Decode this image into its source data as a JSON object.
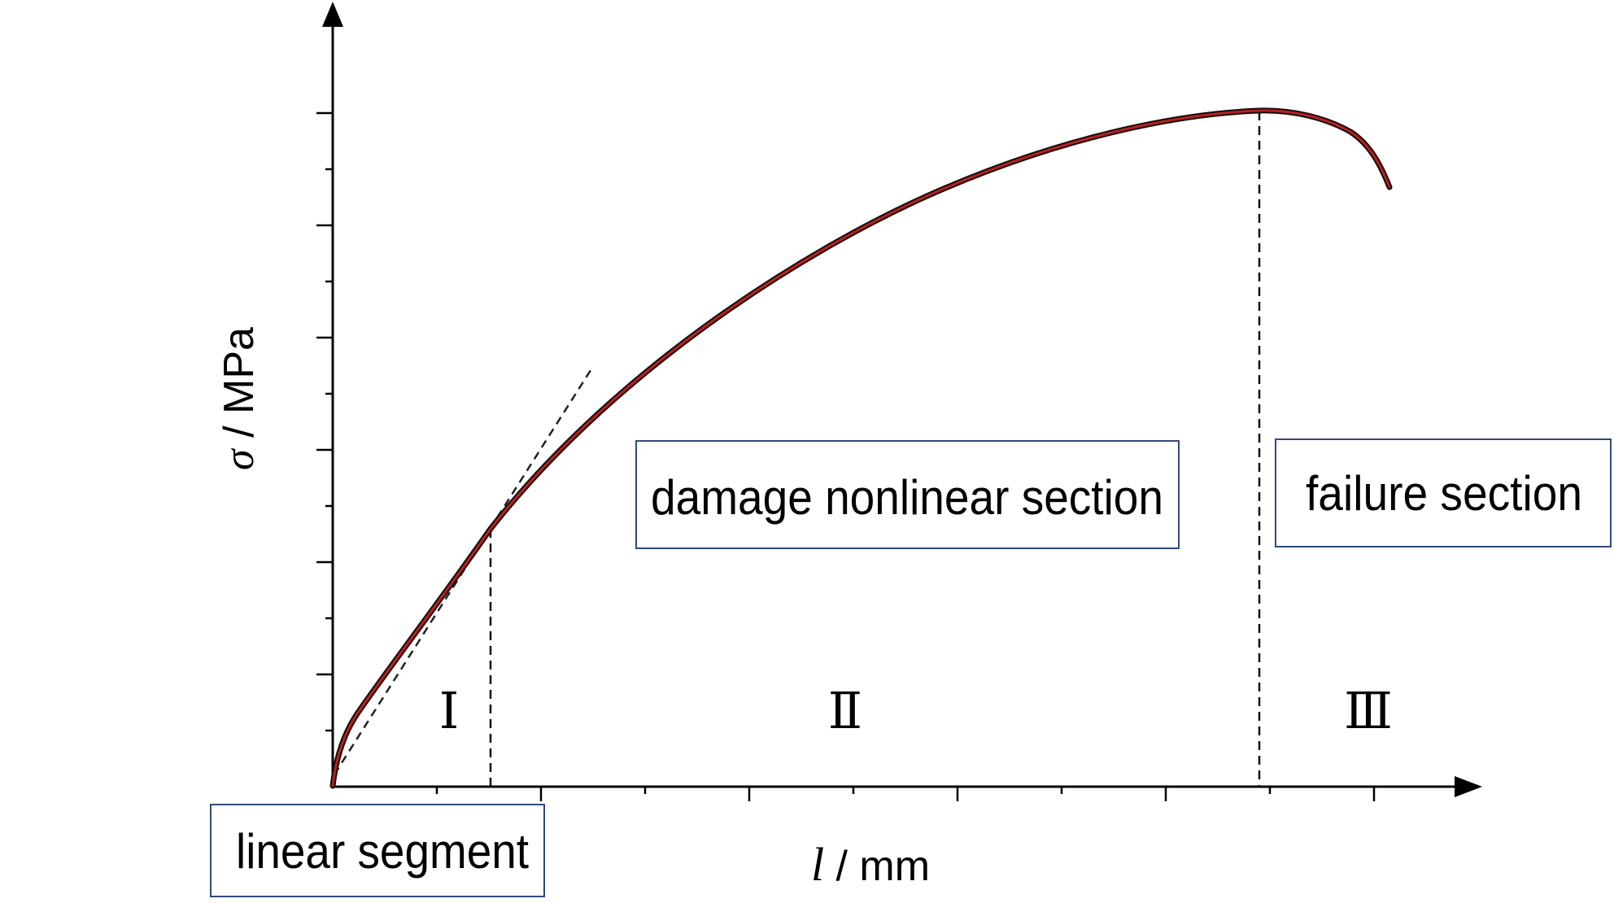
{
  "axes": {
    "y_symbol": "σ",
    "y_unit": " / MPa",
    "x_symbol": "l",
    "x_unit": " / mm"
  },
  "stages": {
    "stage_1": "Ⅰ",
    "stage_2": "Ⅱ",
    "stage_3": "Ⅲ"
  },
  "boxes": {
    "linear": "linear segment",
    "damage": "damage nonlinear section",
    "failure": "failure section"
  },
  "colors": {
    "curve": "#8b1a1a",
    "axis": "#000000",
    "box_border": "#2f4a7a"
  },
  "icons": {
    "y_axis_arrow": "arrow-up-icon",
    "x_axis_arrow": "arrow-right-icon"
  }
}
